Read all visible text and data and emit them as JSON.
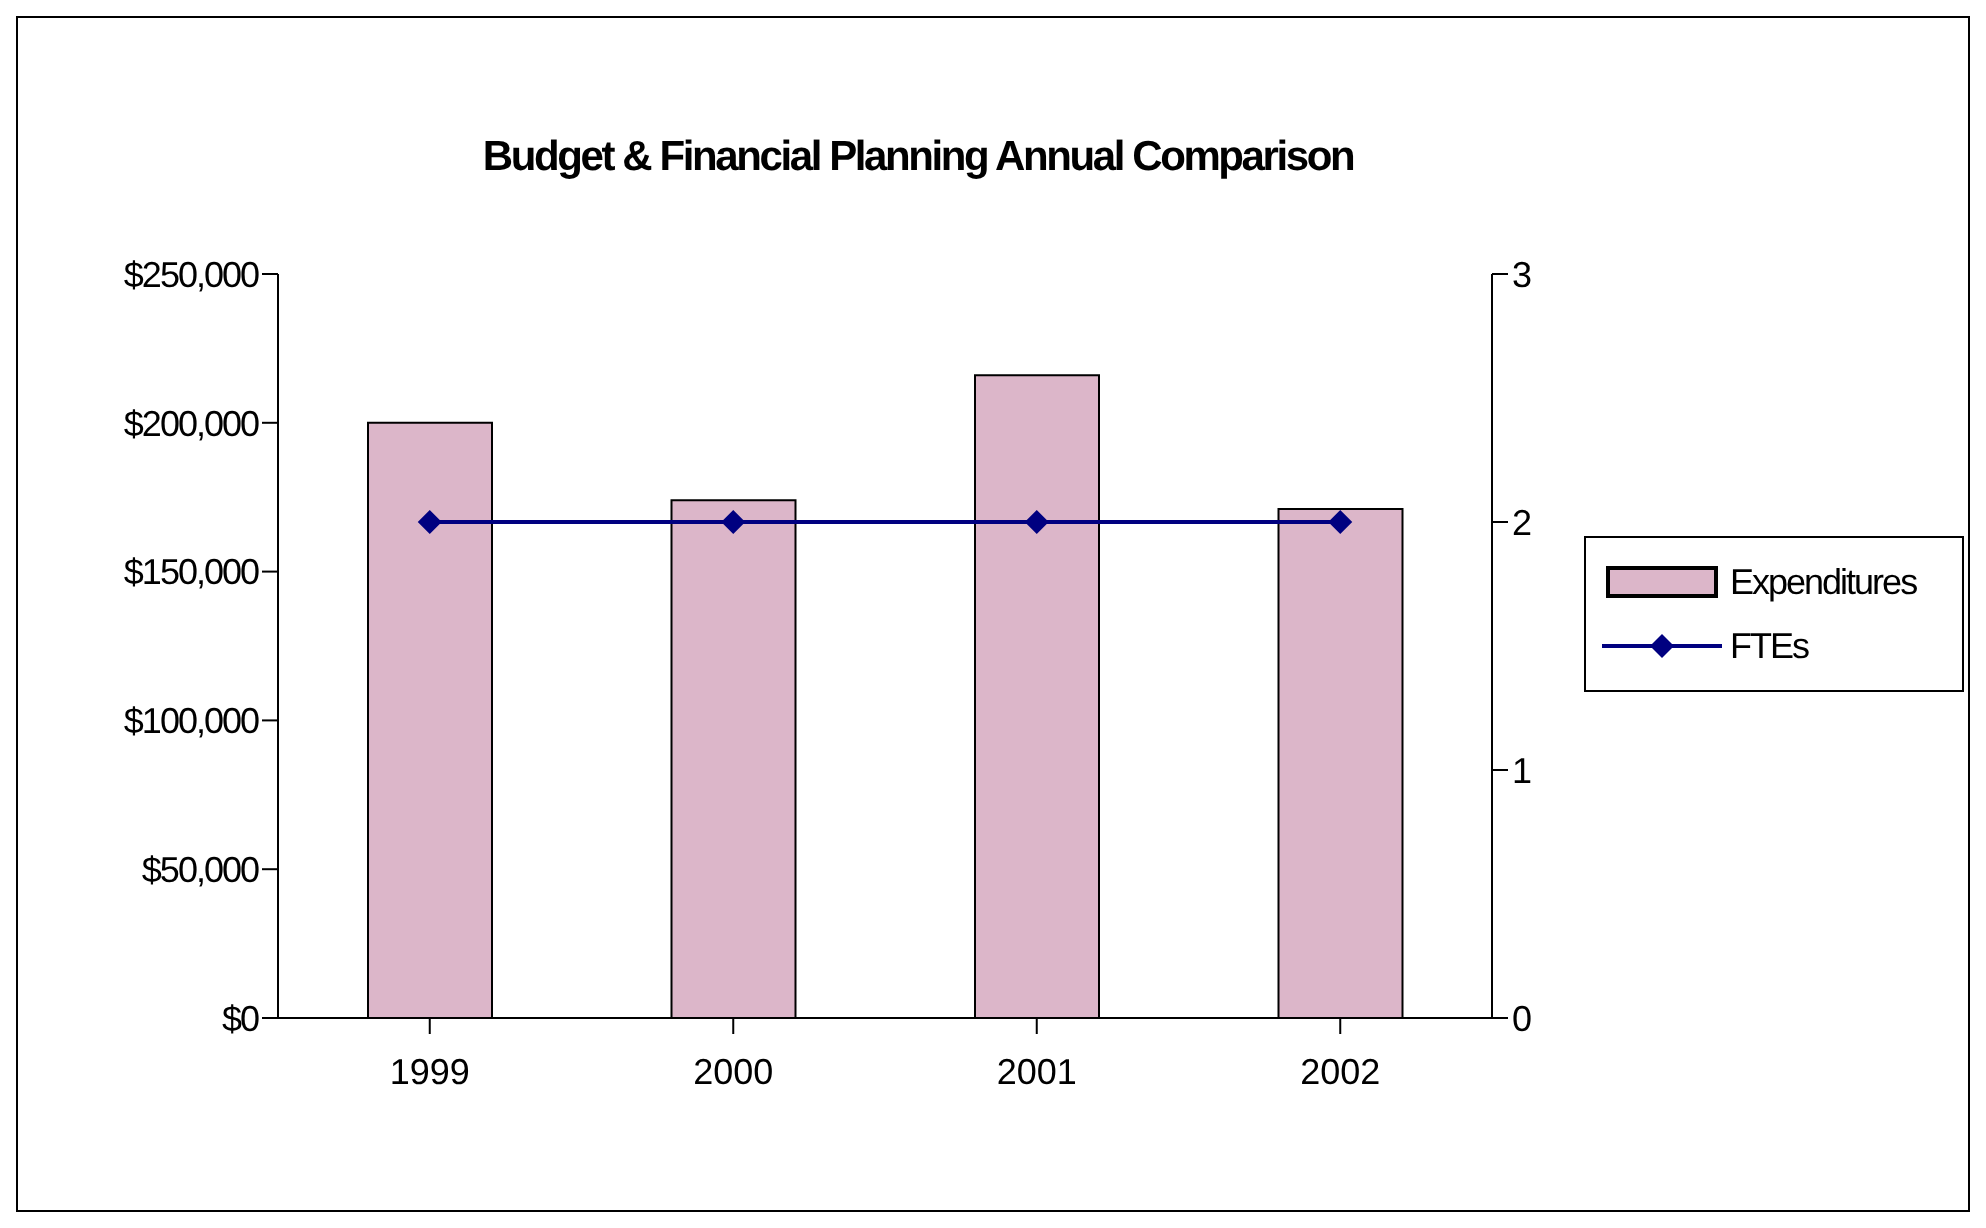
{
  "chart_data": {
    "type": "bar",
    "title": "Budget & Financial Planning Annual Comparison",
    "categories": [
      "1999",
      "2000",
      "2001",
      "2002"
    ],
    "series": [
      {
        "name": "Expenditures",
        "color": "#dcb6c9",
        "values": [
          200000,
          174000,
          216000,
          171000
        ]
      },
      {
        "name": "FTEs",
        "type": "line",
        "axis": "y2",
        "color": "#000080",
        "marker": "diamond",
        "values": [
          2,
          2,
          2,
          2
        ]
      }
    ],
    "ylim": [
      0,
      250000
    ],
    "yticks": [
      {
        "value": 0,
        "label": "$0"
      },
      {
        "value": 50000,
        "label": "$50,000"
      },
      {
        "value": 100000,
        "label": "$100,000"
      },
      {
        "value": 150000,
        "label": "$150,000"
      },
      {
        "value": 200000,
        "label": "$200,000"
      },
      {
        "value": 250000,
        "label": "$250,000"
      }
    ],
    "y2lim": [
      0,
      3
    ],
    "y2ticks": [
      0,
      1,
      2,
      3
    ],
    "grid": false,
    "legend": "right"
  }
}
